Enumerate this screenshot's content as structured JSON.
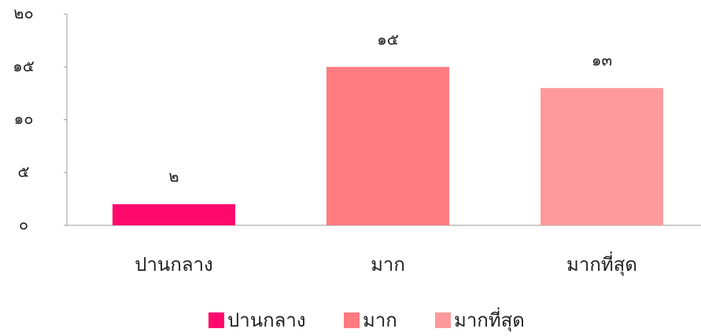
{
  "chart_data": {
    "type": "bar",
    "categories": [
      "ปานกลาง",
      "มาก",
      "มากที่สุด"
    ],
    "values": [
      2,
      15,
      13
    ],
    "value_labels": [
      "๒",
      "๑๕",
      "๑๓"
    ],
    "colors": [
      "#ff0a6c",
      "#ff7b80",
      "#ff9a9c"
    ],
    "ylim": [
      0,
      20
    ],
    "yticks": [
      {
        "value": 0,
        "label": "๐"
      },
      {
        "value": 5,
        "label": "๕"
      },
      {
        "value": 10,
        "label": "๑๐"
      },
      {
        "value": 15,
        "label": "๑๕"
      },
      {
        "value": 20,
        "label": "๒๐"
      }
    ],
    "legend": "bottom"
  }
}
